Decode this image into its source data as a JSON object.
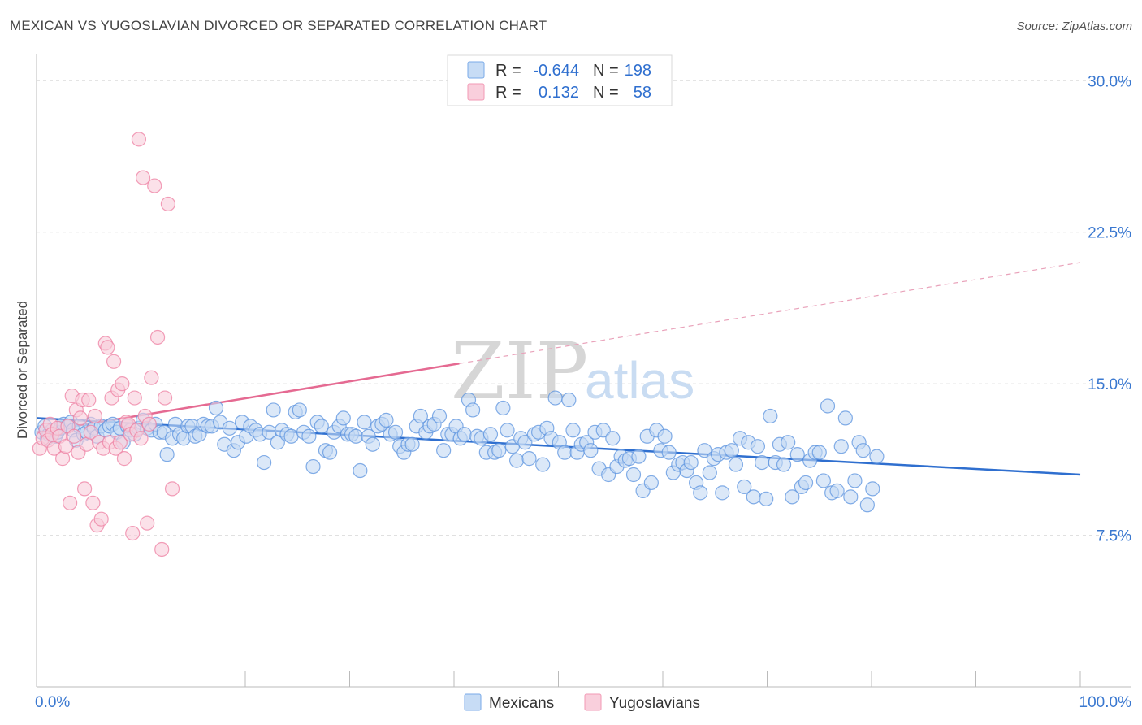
{
  "title": "MEXICAN VS YUGOSLAVIAN DIVORCED OR SEPARATED CORRELATION CHART",
  "source": "Source: ZipAtlas.com",
  "watermark": {
    "part1": "ZIP",
    "part2": "atlas"
  },
  "legend": {
    "rows": [
      {
        "r_label": "R =",
        "r_value": "-0.644",
        "n_label": "N =",
        "n_value": "198",
        "color": "#7aaae8",
        "fill": "#c7dcf5"
      },
      {
        "r_label": "R =",
        "r_value": "0.132",
        "n_label": "N =",
        "n_value": "58",
        "color": "#f29ab5",
        "fill": "#f9cfdc"
      }
    ]
  },
  "bottom_legend": [
    "Mexicans",
    "Yugoslavians"
  ],
  "chart_data": {
    "type": "scatter",
    "ylabel": "Divorced or Separated",
    "xlabel": "",
    "xlim": [
      0,
      100
    ],
    "ylim": [
      0,
      31.5
    ],
    "y_ticks": [
      {
        "value": 7.5,
        "label": "7.5%"
      },
      {
        "value": 15.0,
        "label": "15.0%"
      },
      {
        "value": 22.5,
        "label": "22.5%"
      },
      {
        "value": 30.0,
        "label": "30.0%"
      }
    ],
    "x_ticks": [
      {
        "value": 0,
        "label": "0.0%"
      },
      {
        "value": 100,
        "label": "100.0%"
      }
    ],
    "grid": true,
    "series": [
      {
        "name": "Mexicans",
        "color": "#5b93df",
        "fill": "#c3d9f4",
        "trend": {
          "x": [
            0,
            100
          ],
          "y": [
            13.3,
            10.5
          ],
          "style": "solid"
        },
        "points": [
          [
            0.5,
            12.6
          ],
          [
            0.8,
            12.9
          ],
          [
            1.0,
            12.3
          ],
          [
            1.2,
            12.5
          ],
          [
            1.5,
            12.7
          ],
          [
            1.8,
            12.4
          ],
          [
            2.0,
            12.6
          ],
          [
            2.3,
            12.8
          ],
          [
            2.6,
            13.0
          ],
          [
            3.0,
            12.9
          ],
          [
            3.3,
            13.1
          ],
          [
            3.5,
            12.7
          ],
          [
            3.8,
            12.2
          ],
          [
            4.1,
            12.9
          ],
          [
            4.5,
            12.5
          ],
          [
            4.8,
            12.6
          ],
          [
            5.2,
            13.0
          ],
          [
            5.5,
            12.8
          ],
          [
            5.8,
            12.4
          ],
          [
            6.2,
            12.9
          ],
          [
            6.6,
            12.7
          ],
          [
            7.0,
            12.9
          ],
          [
            7.3,
            13.0
          ],
          [
            7.7,
            12.6
          ],
          [
            8.0,
            12.8
          ],
          [
            8.3,
            12.1
          ],
          [
            8.7,
            12.9
          ],
          [
            9.0,
            12.7
          ],
          [
            9.4,
            12.5
          ],
          [
            9.8,
            12.8
          ],
          [
            10.2,
            13.2
          ],
          [
            10.6,
            12.8
          ],
          [
            11.0,
            12.7
          ],
          [
            11.4,
            13.0
          ],
          [
            11.8,
            12.6
          ],
          [
            12.2,
            12.6
          ],
          [
            12.5,
            11.5
          ],
          [
            13.0,
            12.3
          ],
          [
            13.3,
            13.0
          ],
          [
            13.7,
            12.5
          ],
          [
            14.1,
            12.3
          ],
          [
            14.5,
            12.9
          ],
          [
            14.9,
            12.9
          ],
          [
            15.2,
            12.4
          ],
          [
            15.6,
            12.5
          ],
          [
            16.0,
            13.0
          ],
          [
            16.4,
            12.9
          ],
          [
            16.8,
            12.9
          ],
          [
            17.2,
            13.8
          ],
          [
            17.6,
            13.1
          ],
          [
            18.0,
            12.0
          ],
          [
            18.5,
            12.8
          ],
          [
            18.9,
            11.7
          ],
          [
            19.3,
            12.1
          ],
          [
            19.7,
            13.1
          ],
          [
            20.1,
            12.4
          ],
          [
            20.5,
            12.9
          ],
          [
            21.0,
            12.7
          ],
          [
            21.4,
            12.5
          ],
          [
            21.8,
            11.1
          ],
          [
            22.3,
            12.6
          ],
          [
            22.7,
            13.7
          ],
          [
            23.1,
            12.1
          ],
          [
            23.5,
            12.7
          ],
          [
            24.0,
            12.5
          ],
          [
            24.4,
            12.4
          ],
          [
            24.8,
            13.6
          ],
          [
            25.2,
            13.7
          ],
          [
            25.6,
            12.6
          ],
          [
            26.1,
            12.4
          ],
          [
            26.5,
            10.9
          ],
          [
            26.9,
            13.1
          ],
          [
            27.3,
            12.9
          ],
          [
            27.7,
            11.7
          ],
          [
            28.1,
            11.6
          ],
          [
            28.5,
            12.6
          ],
          [
            29.0,
            12.9
          ],
          [
            29.4,
            13.3
          ],
          [
            29.8,
            12.5
          ],
          [
            30.2,
            12.5
          ],
          [
            30.6,
            12.4
          ],
          [
            31.0,
            10.7
          ],
          [
            31.4,
            13.1
          ],
          [
            31.8,
            12.4
          ],
          [
            32.2,
            12.0
          ],
          [
            32.7,
            12.9
          ],
          [
            33.1,
            13.0
          ],
          [
            33.5,
            13.2
          ],
          [
            33.9,
            12.5
          ],
          [
            34.4,
            12.6
          ],
          [
            34.8,
            11.9
          ],
          [
            35.2,
            11.6
          ],
          [
            35.6,
            12.0
          ],
          [
            36.0,
            12.0
          ],
          [
            36.4,
            12.9
          ],
          [
            36.8,
            13.4
          ],
          [
            37.3,
            12.6
          ],
          [
            37.7,
            12.9
          ],
          [
            38.1,
            13.0
          ],
          [
            38.6,
            13.4
          ],
          [
            39.0,
            11.7
          ],
          [
            39.4,
            12.5
          ],
          [
            39.8,
            12.5
          ],
          [
            40.2,
            12.9
          ],
          [
            40.6,
            12.3
          ],
          [
            41.0,
            12.5
          ],
          [
            41.4,
            14.2
          ],
          [
            41.8,
            13.7
          ],
          [
            42.2,
            12.4
          ],
          [
            42.6,
            12.3
          ],
          [
            43.1,
            11.6
          ],
          [
            43.5,
            12.5
          ],
          [
            43.9,
            11.6
          ],
          [
            44.3,
            11.7
          ],
          [
            44.7,
            13.8
          ],
          [
            45.1,
            12.7
          ],
          [
            45.6,
            11.9
          ],
          [
            46.0,
            11.2
          ],
          [
            46.4,
            12.3
          ],
          [
            46.8,
            12.1
          ],
          [
            47.2,
            11.3
          ],
          [
            47.7,
            12.5
          ],
          [
            48.1,
            12.6
          ],
          [
            48.5,
            11.0
          ],
          [
            48.9,
            12.8
          ],
          [
            49.3,
            12.3
          ],
          [
            49.7,
            14.3
          ],
          [
            50.1,
            12.1
          ],
          [
            50.6,
            11.6
          ],
          [
            51.0,
            14.2
          ],
          [
            51.4,
            12.7
          ],
          [
            51.8,
            11.6
          ],
          [
            52.2,
            12.0
          ],
          [
            52.7,
            12.1
          ],
          [
            53.1,
            11.7
          ],
          [
            53.5,
            12.6
          ],
          [
            53.9,
            10.8
          ],
          [
            54.3,
            12.7
          ],
          [
            54.8,
            10.5
          ],
          [
            55.2,
            12.3
          ],
          [
            55.6,
            10.9
          ],
          [
            56.0,
            11.4
          ],
          [
            56.4,
            11.2
          ],
          [
            56.8,
            11.3
          ],
          [
            57.2,
            10.5
          ],
          [
            57.7,
            11.4
          ],
          [
            58.1,
            9.7
          ],
          [
            58.5,
            12.4
          ],
          [
            58.9,
            10.1
          ],
          [
            59.4,
            12.7
          ],
          [
            59.8,
            11.7
          ],
          [
            60.2,
            12.4
          ],
          [
            60.6,
            11.6
          ],
          [
            61.0,
            10.6
          ],
          [
            61.5,
            11.0
          ],
          [
            61.9,
            11.1
          ],
          [
            62.3,
            10.7
          ],
          [
            62.7,
            11.1
          ],
          [
            63.2,
            10.1
          ],
          [
            63.6,
            9.6
          ],
          [
            64.0,
            11.7
          ],
          [
            64.5,
            10.6
          ],
          [
            64.9,
            11.3
          ],
          [
            65.3,
            11.5
          ],
          [
            65.7,
            9.6
          ],
          [
            66.1,
            11.6
          ],
          [
            66.6,
            11.7
          ],
          [
            67.0,
            11.0
          ],
          [
            67.4,
            12.3
          ],
          [
            67.8,
            9.9
          ],
          [
            68.2,
            12.1
          ],
          [
            68.7,
            9.4
          ],
          [
            69.1,
            11.9
          ],
          [
            69.5,
            11.1
          ],
          [
            69.9,
            9.3
          ],
          [
            70.3,
            13.4
          ],
          [
            70.8,
            11.1
          ],
          [
            71.2,
            12.0
          ],
          [
            71.6,
            11.0
          ],
          [
            72.0,
            12.1
          ],
          [
            72.4,
            9.4
          ],
          [
            72.9,
            11.5
          ],
          [
            73.3,
            9.9
          ],
          [
            73.7,
            10.1
          ],
          [
            74.1,
            11.2
          ],
          [
            74.6,
            11.6
          ],
          [
            75.0,
            11.6
          ],
          [
            75.4,
            10.2
          ],
          [
            75.8,
            13.9
          ],
          [
            76.2,
            9.6
          ],
          [
            76.7,
            9.7
          ],
          [
            77.1,
            11.9
          ],
          [
            77.5,
            13.3
          ],
          [
            78.0,
            9.4
          ],
          [
            78.4,
            10.2
          ],
          [
            78.8,
            12.1
          ],
          [
            79.2,
            11.7
          ],
          [
            79.6,
            9.0
          ],
          [
            80.1,
            9.8
          ],
          [
            80.5,
            11.4
          ]
        ]
      },
      {
        "name": "Yugoslavians",
        "color": "#ee7fa2",
        "fill": "#f8cddb",
        "trend": {
          "x": [
            0,
            40.5
          ],
          "y": [
            12.6,
            16.0
          ],
          "style": "solid",
          "extension": {
            "x": [
              40.5,
              100
            ],
            "y": [
              16.0,
              21.0
            ],
            "style": "dashed"
          }
        },
        "points": [
          [
            0.3,
            11.8
          ],
          [
            0.6,
            12.3
          ],
          [
            0.9,
            12.7
          ],
          [
            1.1,
            12.2
          ],
          [
            1.3,
            13.0
          ],
          [
            1.5,
            12.5
          ],
          [
            1.7,
            11.8
          ],
          [
            2.0,
            12.8
          ],
          [
            2.2,
            12.4
          ],
          [
            2.5,
            11.3
          ],
          [
            2.8,
            11.9
          ],
          [
            3.0,
            12.9
          ],
          [
            3.2,
            9.1
          ],
          [
            3.4,
            14.4
          ],
          [
            3.6,
            12.4
          ],
          [
            3.8,
            13.7
          ],
          [
            4.0,
            11.6
          ],
          [
            4.2,
            13.3
          ],
          [
            4.4,
            14.2
          ],
          [
            4.6,
            9.8
          ],
          [
            4.8,
            12.0
          ],
          [
            5.0,
            14.2
          ],
          [
            5.2,
            12.6
          ],
          [
            5.4,
            9.1
          ],
          [
            5.6,
            13.4
          ],
          [
            5.8,
            8.0
          ],
          [
            6.0,
            12.1
          ],
          [
            6.2,
            8.3
          ],
          [
            6.4,
            11.8
          ],
          [
            6.6,
            17.0
          ],
          [
            6.8,
            16.8
          ],
          [
            7.0,
            12.1
          ],
          [
            7.2,
            14.3
          ],
          [
            7.4,
            16.1
          ],
          [
            7.6,
            11.8
          ],
          [
            7.8,
            14.7
          ],
          [
            8.0,
            12.1
          ],
          [
            8.2,
            15.0
          ],
          [
            8.4,
            11.3
          ],
          [
            8.6,
            13.1
          ],
          [
            8.8,
            13.0
          ],
          [
            9.0,
            12.5
          ],
          [
            9.2,
            7.6
          ],
          [
            9.4,
            14.3
          ],
          [
            9.6,
            12.7
          ],
          [
            9.8,
            27.1
          ],
          [
            10.0,
            12.3
          ],
          [
            10.2,
            25.2
          ],
          [
            10.4,
            13.4
          ],
          [
            10.6,
            8.1
          ],
          [
            10.8,
            13.0
          ],
          [
            11.0,
            15.3
          ],
          [
            11.3,
            24.8
          ],
          [
            11.6,
            17.3
          ],
          [
            12.0,
            6.8
          ],
          [
            12.3,
            14.3
          ],
          [
            12.6,
            23.9
          ],
          [
            13.0,
            9.8
          ]
        ]
      }
    ]
  }
}
